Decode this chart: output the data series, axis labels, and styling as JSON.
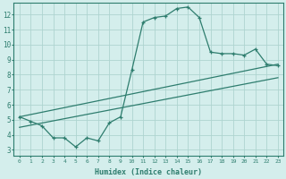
{
  "x": [
    0,
    1,
    2,
    3,
    4,
    5,
    6,
    7,
    8,
    9,
    10,
    11,
    12,
    13,
    14,
    15,
    16,
    17,
    18,
    19,
    20,
    21,
    22,
    23
  ],
  "y_main": [
    5.2,
    4.9,
    4.6,
    3.8,
    3.8,
    3.2,
    3.8,
    3.6,
    4.8,
    5.2,
    8.3,
    11.5,
    11.8,
    11.9,
    12.4,
    12.5,
    11.8,
    9.5,
    9.4,
    9.4,
    9.3,
    9.7,
    8.7,
    8.6
  ],
  "trend1_x": [
    0,
    23
  ],
  "trend1_y": [
    5.2,
    8.7
  ],
  "trend2_x": [
    0,
    23
  ],
  "trend2_y": [
    4.5,
    7.8
  ],
  "line_color": "#2e7d6e",
  "bg_color": "#d4eeec",
  "grid_color": "#aed4d0",
  "xlabel": "Humidex (Indice chaleur)",
  "xtick_labels": [
    "0",
    "1",
    "2",
    "3",
    "4",
    "5",
    "6",
    "7",
    "8",
    "9",
    "10",
    "11",
    "12",
    "13",
    "14",
    "15",
    "16",
    "17",
    "18",
    "19",
    "20",
    "21",
    "22",
    "23"
  ],
  "ytick_labels": [
    "3",
    "4",
    "5",
    "6",
    "7",
    "8",
    "9",
    "10",
    "11",
    "12"
  ],
  "yticks": [
    3,
    4,
    5,
    6,
    7,
    8,
    9,
    10,
    11,
    12
  ],
  "ylim": [
    2.6,
    12.8
  ],
  "xlim": [
    -0.5,
    23.5
  ]
}
